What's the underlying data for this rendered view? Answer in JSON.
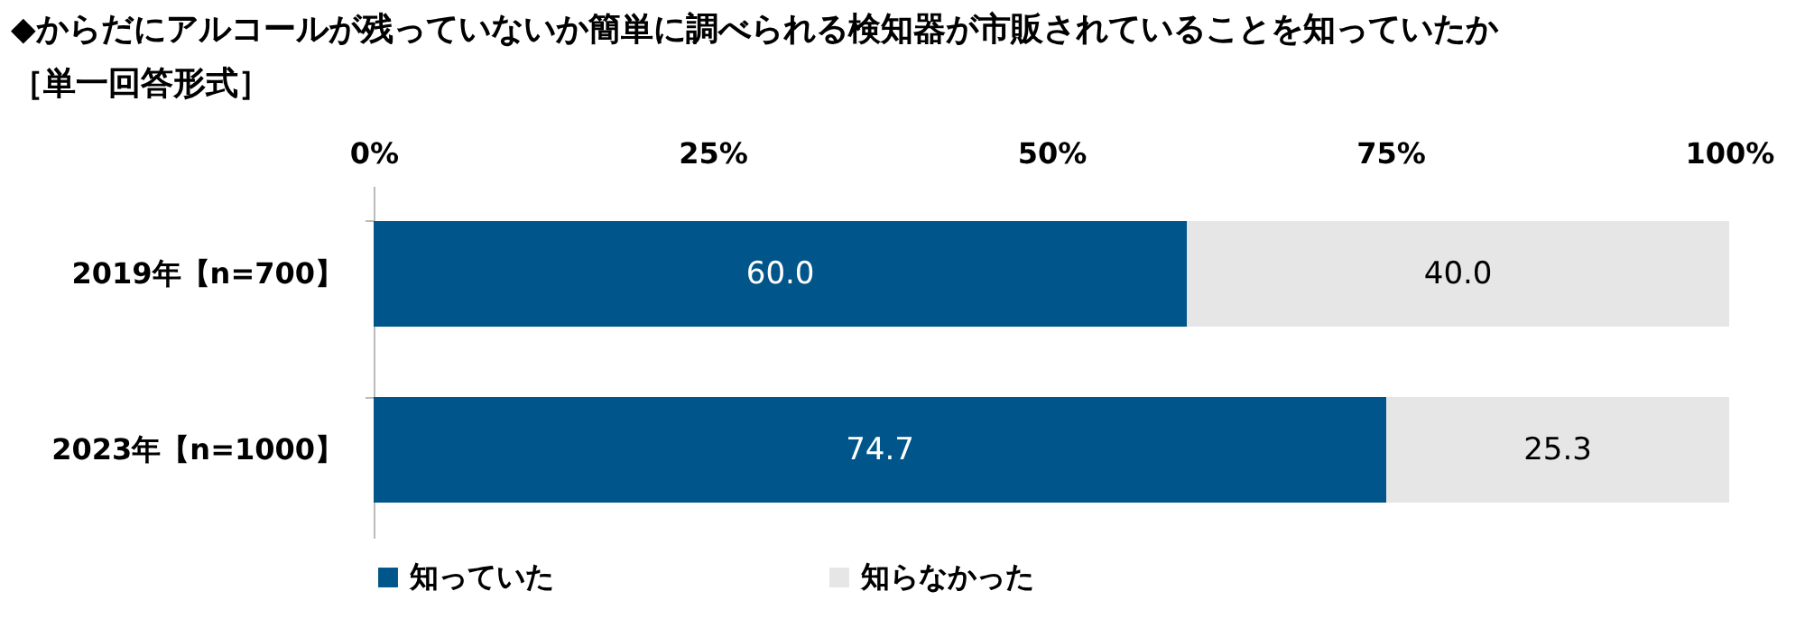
{
  "chart_data": {
    "type": "bar",
    "orientation": "horizontal",
    "stacked": true,
    "title": "◆からだにアルコールが残っていないか簡単に調べられる検知器が市販されていることを知っていたか",
    "subtitle": "［単一回答形式］",
    "categories": [
      "2019年【n=700】",
      "2023年【n=1000】"
    ],
    "series": [
      {
        "name": "知っていた",
        "color": "#00558a",
        "values": [
          60.0,
          74.7
        ],
        "value_labels": [
          "60.0",
          "74.7"
        ]
      },
      {
        "name": "知らなかった",
        "color": "#e6e6e6",
        "values": [
          40.0,
          25.3
        ],
        "value_labels": [
          "40.0",
          "25.3"
        ]
      }
    ],
    "xlim": [
      0,
      100
    ],
    "xticks": [
      {
        "value": 0,
        "label": "0%"
      },
      {
        "value": 25,
        "label": "25%"
      },
      {
        "value": 50,
        "label": "50%"
      },
      {
        "value": 75,
        "label": "75%"
      },
      {
        "value": 100,
        "label": "100%"
      }
    ],
    "grid": false,
    "legend": "bottom"
  }
}
